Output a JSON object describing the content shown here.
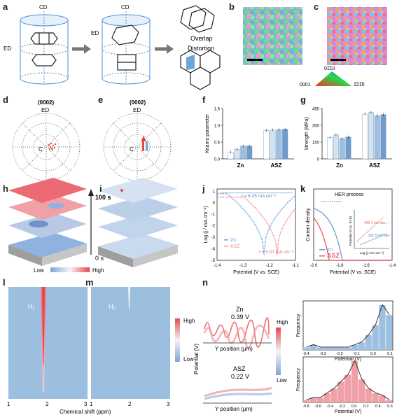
{
  "panels": [
    "a",
    "b",
    "c",
    "d",
    "e",
    "f",
    "g",
    "h",
    "i",
    "j",
    "k",
    "l",
    "m",
    "n"
  ],
  "panel_a": {
    "cd_label": "CD",
    "ed_label": "ED",
    "overlap_label": "Overlap",
    "distortion_label": "Distortion"
  },
  "ipf_legend": {
    "c1": "0001",
    "c2": "01̅10",
    "c3": "1̅21̅0"
  },
  "pole_figure": {
    "title": "(0002)",
    "ed": "ED",
    "cd": "C"
  },
  "chart_f": {
    "type": "bar",
    "ylabel": "Kearns parameter",
    "categories": [
      "Zn",
      "ASZ"
    ],
    "yticks": [
      "0.0",
      "0.5",
      "1.0",
      "1.5"
    ],
    "ylim": [
      0,
      1.5
    ],
    "series": [
      {
        "values": [
          0.2,
          0.85
        ]
      },
      {
        "values": [
          0.29,
          0.86
        ]
      },
      {
        "values": [
          0.38,
          0.87
        ]
      },
      {
        "values": [
          0.38,
          0.88
        ]
      }
    ]
  },
  "chart_g": {
    "type": "bar",
    "ylabel": "Strength (MPa)",
    "categories": [
      "Zn",
      "ASZ"
    ],
    "yticks": [
      "0",
      "150",
      "300",
      "450"
    ],
    "ylim": [
      0,
      450
    ],
    "series": [
      {
        "values": [
          190,
          400
        ]
      },
      {
        "values": [
          215,
          415
        ]
      },
      {
        "values": [
          182,
          385
        ]
      },
      {
        "values": [
          195,
          395
        ]
      }
    ]
  },
  "panel_hi": {
    "time_top": "100 s",
    "time_bottom": "0 s",
    "low": "Low",
    "high": "High"
  },
  "chart_j": {
    "type": "line",
    "xlabel": "Potential (V vs. SCE)",
    "ylabel": "Log (j / mA cm⁻²)",
    "xticks": [
      "-1.4",
      "-1.3",
      "-1.2",
      "-1.1"
    ],
    "yticks": [
      "1",
      "0",
      "-1",
      "-2",
      "-3",
      "-4",
      "-5"
    ],
    "xlim": [
      -1.4,
      -1.1
    ],
    "ylim": [
      -5,
      1.2
    ],
    "i_zn": "I = 6.25 mA cm⁻²",
    "i_asz": "I = 3.07 mA cm⁻²",
    "series": [
      {
        "name": "Zn",
        "ecorr": -1.22,
        "logi": 0.8
      },
      {
        "name": "ASZ",
        "ecorr": -1.17,
        "logi": 0.49
      }
    ]
  },
  "chart_k": {
    "type": "line",
    "xlabel": "Potential (V vs. SCE)",
    "ylabel": "Current density",
    "xticks": [
      "-2.0",
      "-1.8",
      "-1.6",
      "-1.4"
    ],
    "xlim": [
      -2.0,
      -1.4
    ],
    "hers": "HER process",
    "inset_ylabel": "Potential (V vs. SCE)",
    "inset_xlabel": "Log (j / mA cm⁻²)",
    "tafel_asz": "400.1 mV dec⁻¹",
    "tafel_zn": "201.5 mV dec⁻¹",
    "series": [
      {
        "name": "Zn",
        "onset": -1.78
      },
      {
        "name": "ASZ",
        "onset": -1.88
      }
    ]
  },
  "chart_lm": {
    "xlabel": "Chemical shift (ppm)",
    "xticks": [
      "1",
      "2",
      "3"
    ],
    "species": "H₂",
    "high": "High",
    "low": "Low"
  },
  "panel_n": {
    "zn_label": "Zn",
    "zn_value": "0.39 V",
    "asz_label": "ASZ",
    "asz_value": "0.22 V",
    "ylabel": "Potential (V)",
    "xlabel": "Y position (μm)",
    "high": "High",
    "low": "Low"
  },
  "hist_top": {
    "type": "bar",
    "xlabel": "Potential (V)",
    "ylabel": "Frequency",
    "xticks": [
      "-0.4",
      "-0.3",
      "-0.2",
      "-0.1",
      "0.0",
      "0.1"
    ],
    "bins": [
      -0.45,
      -0.4,
      -0.35,
      -0.3,
      -0.25,
      -0.2,
      -0.15,
      -0.1,
      -0.05,
      0.0,
      0.05,
      0.1,
      0.15
    ],
    "values": [
      1,
      2,
      1,
      1,
      1,
      1,
      1,
      2,
      3,
      6,
      10,
      18,
      14
    ]
  },
  "hist_bottom": {
    "type": "bar",
    "xlabel": "Potential (V)",
    "ylabel": "Frequency",
    "xticks": [
      "-0.8",
      "-0.6",
      "-0.4",
      "-0.2",
      "0.0",
      "0.2",
      "0.4",
      "0.6"
    ],
    "bins": [
      -0.7,
      -0.6,
      -0.5,
      -0.4,
      -0.3,
      -0.2,
      -0.1,
      0.0,
      0.1,
      0.2,
      0.3,
      0.4,
      0.5
    ],
    "values": [
      1,
      2,
      2,
      4,
      6,
      9,
      12,
      18,
      10,
      6,
      4,
      3,
      1
    ]
  }
}
